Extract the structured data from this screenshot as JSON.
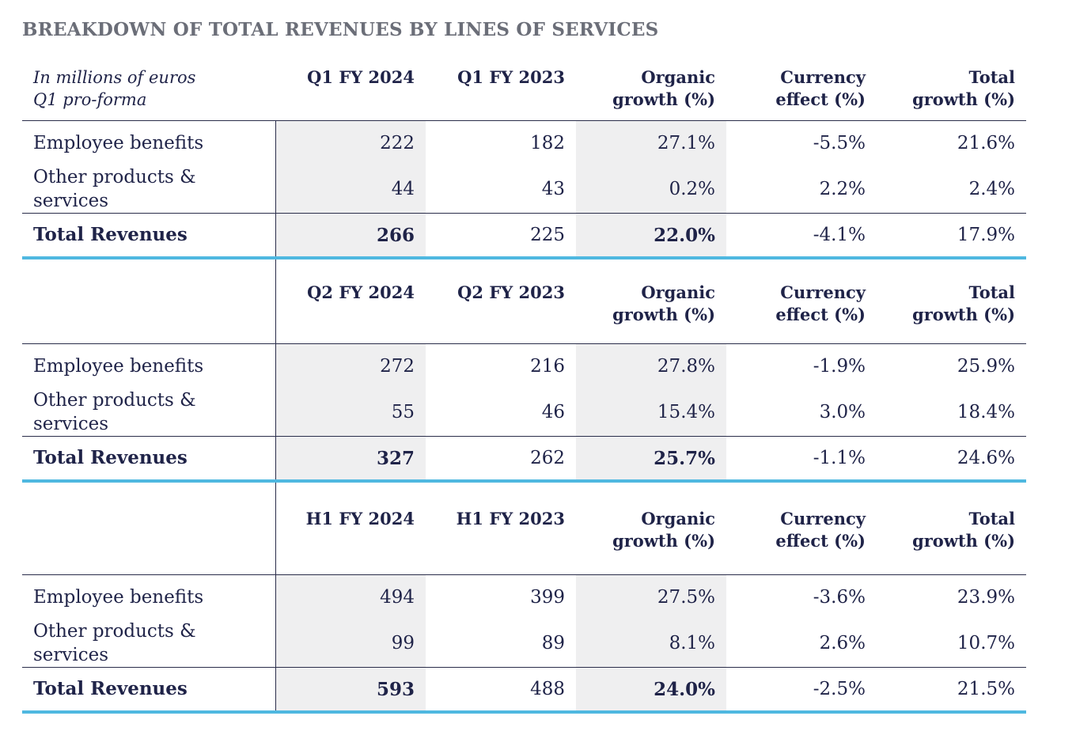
{
  "title": "BREAKDOWN OF TOTAL REVENUES BY LINES OF SERVICES",
  "note_line1": "In millions of euros",
  "note_line2": "Q1 pro-forma",
  "columns": {
    "organic_l1": "Organic",
    "organic_l2": "growth (%)",
    "currency_l1": "Currency",
    "currency_l2": "effect (%)",
    "total_l1": "Total",
    "total_l2": "growth (%)"
  },
  "labels": {
    "employee": "Employee benefits",
    "other_l1": "Other products &",
    "other_l2": "services",
    "total": "Total Revenues"
  },
  "sections": [
    {
      "col1": "Q1 FY 2024",
      "col2": "Q1 FY 2023",
      "employee": [
        "222",
        "182",
        "27.1%",
        "-5.5%",
        "21.6%"
      ],
      "other": [
        "44",
        "43",
        "0.2%",
        "2.2%",
        "2.4%"
      ],
      "total": [
        "266",
        "225",
        "22.0%",
        "-4.1%",
        "17.9%"
      ]
    },
    {
      "col1": "Q2 FY 2024",
      "col2": "Q2 FY 2023",
      "employee": [
        "272",
        "216",
        "27.8%",
        "-1.9%",
        "25.9%"
      ],
      "other": [
        "55",
        "46",
        "15.4%",
        "3.0%",
        "18.4%"
      ],
      "total": [
        "327",
        "262",
        "25.7%",
        "-1.1%",
        "24.6%"
      ]
    },
    {
      "col1": "H1 FY 2024",
      "col2": "H1 FY 2023",
      "employee": [
        "494",
        "399",
        "27.5%",
        "-3.6%",
        "23.9%"
      ],
      "other": [
        "99",
        "89",
        "8.1%",
        "2.6%",
        "10.7%"
      ],
      "total": [
        "593",
        "488",
        "24.0%",
        "-2.5%",
        "21.5%"
      ]
    }
  ],
  "colors": {
    "title": "#6b6e78",
    "text": "#1f2348",
    "shade": "#efeff0",
    "accent": "#4fb8e0"
  }
}
